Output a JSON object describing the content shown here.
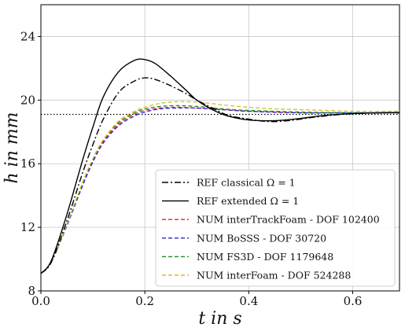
{
  "chart_data": {
    "type": "line",
    "xlabel": "t in s",
    "ylabel": "h in mm",
    "xlim": [
      0.0,
      0.69
    ],
    "ylim": [
      8,
      26
    ],
    "xticks": [
      0.0,
      0.2,
      0.4,
      0.6
    ],
    "xtick_labels": [
      "0.0",
      "0.2",
      "0.4",
      "0.6"
    ],
    "yticks": [
      8,
      12,
      16,
      20,
      24
    ],
    "ytick_labels": [
      "8",
      "12",
      "16",
      "20",
      "24"
    ],
    "grid": true,
    "legend_position": "lower-right",
    "reference_line": {
      "y": 19.1,
      "style": "dotted",
      "color": "#000000"
    },
    "series": [
      {
        "name": "REF classical Ω = 1",
        "color": "#000000",
        "dash": "dashdot",
        "x": [
          0.0,
          0.02,
          0.05,
          0.08,
          0.1,
          0.12,
          0.15,
          0.18,
          0.2,
          0.22,
          0.25,
          0.28,
          0.3,
          0.33,
          0.36,
          0.4,
          0.44,
          0.48,
          0.52,
          0.56,
          0.6,
          0.65,
          0.69
        ],
        "y": [
          9.1,
          9.8,
          12.4,
          15.4,
          17.2,
          18.8,
          20.5,
          21.2,
          21.4,
          21.3,
          20.9,
          20.4,
          20.0,
          19.5,
          19.05,
          18.8,
          18.65,
          18.72,
          18.9,
          19.05,
          19.15,
          19.2,
          19.2
        ]
      },
      {
        "name": "REF extended Ω = 1",
        "color": "#000000",
        "dash": "solid",
        "x": [
          0.0,
          0.02,
          0.05,
          0.08,
          0.1,
          0.12,
          0.15,
          0.18,
          0.2,
          0.22,
          0.25,
          0.28,
          0.3,
          0.33,
          0.36,
          0.4,
          0.44,
          0.47,
          0.5,
          0.55,
          0.6,
          0.65,
          0.69
        ],
        "y": [
          9.1,
          9.9,
          12.8,
          16.2,
          18.3,
          20.2,
          21.8,
          22.5,
          22.55,
          22.3,
          21.5,
          20.6,
          20.0,
          19.4,
          19.0,
          18.75,
          18.7,
          18.75,
          18.85,
          19.05,
          19.15,
          19.2,
          19.22
        ]
      },
      {
        "name": "NUM interTrackFoam - DOF 102400",
        "color": "#e8231c",
        "dash": "dashed",
        "x": [
          0.0,
          0.02,
          0.05,
          0.08,
          0.1,
          0.12,
          0.15,
          0.18,
          0.2,
          0.23,
          0.26,
          0.3,
          0.35,
          0.4,
          0.5,
          0.6,
          0.69
        ],
        "y": [
          9.1,
          9.8,
          12.2,
          14.7,
          16.2,
          17.4,
          18.5,
          19.1,
          19.35,
          19.5,
          19.55,
          19.5,
          19.4,
          19.3,
          19.2,
          19.2,
          19.2
        ]
      },
      {
        "name": "NUM BoSSS - DOF 30720",
        "color": "#2424dc",
        "dash": "dashed",
        "x": [
          0.0,
          0.02,
          0.05,
          0.08,
          0.1,
          0.12,
          0.15,
          0.18,
          0.2,
          0.23,
          0.26,
          0.3,
          0.35,
          0.4,
          0.5,
          0.6,
          0.69
        ],
        "y": [
          9.1,
          9.8,
          12.1,
          14.6,
          16.1,
          17.3,
          18.4,
          19.0,
          19.25,
          19.45,
          19.5,
          19.5,
          19.4,
          19.3,
          19.2,
          19.2,
          19.2
        ]
      },
      {
        "name": "NUM FS3D - DOF 1179648",
        "color": "#1f8b2a",
        "dash": "dashed",
        "x": [
          0.0,
          0.02,
          0.05,
          0.08,
          0.1,
          0.12,
          0.15,
          0.18,
          0.2,
          0.23,
          0.26,
          0.3,
          0.35,
          0.4,
          0.5,
          0.6,
          0.69
        ],
        "y": [
          9.1,
          9.8,
          12.2,
          14.8,
          16.3,
          17.5,
          18.6,
          19.2,
          19.45,
          19.6,
          19.65,
          19.6,
          19.45,
          19.35,
          19.25,
          19.2,
          19.2
        ]
      },
      {
        "name": "NUM interFoam - DOF 524288",
        "color": "#d4c21c",
        "dash": "dashed",
        "x": [
          0.0,
          0.02,
          0.05,
          0.08,
          0.1,
          0.12,
          0.15,
          0.18,
          0.2,
          0.23,
          0.26,
          0.28,
          0.31,
          0.35,
          0.4,
          0.45,
          0.5,
          0.6,
          0.69
        ],
        "y": [
          9.1,
          9.8,
          12.2,
          14.8,
          16.3,
          17.5,
          18.7,
          19.3,
          19.55,
          19.8,
          19.9,
          19.9,
          19.85,
          19.7,
          19.55,
          19.45,
          19.4,
          19.3,
          19.3
        ]
      }
    ]
  }
}
